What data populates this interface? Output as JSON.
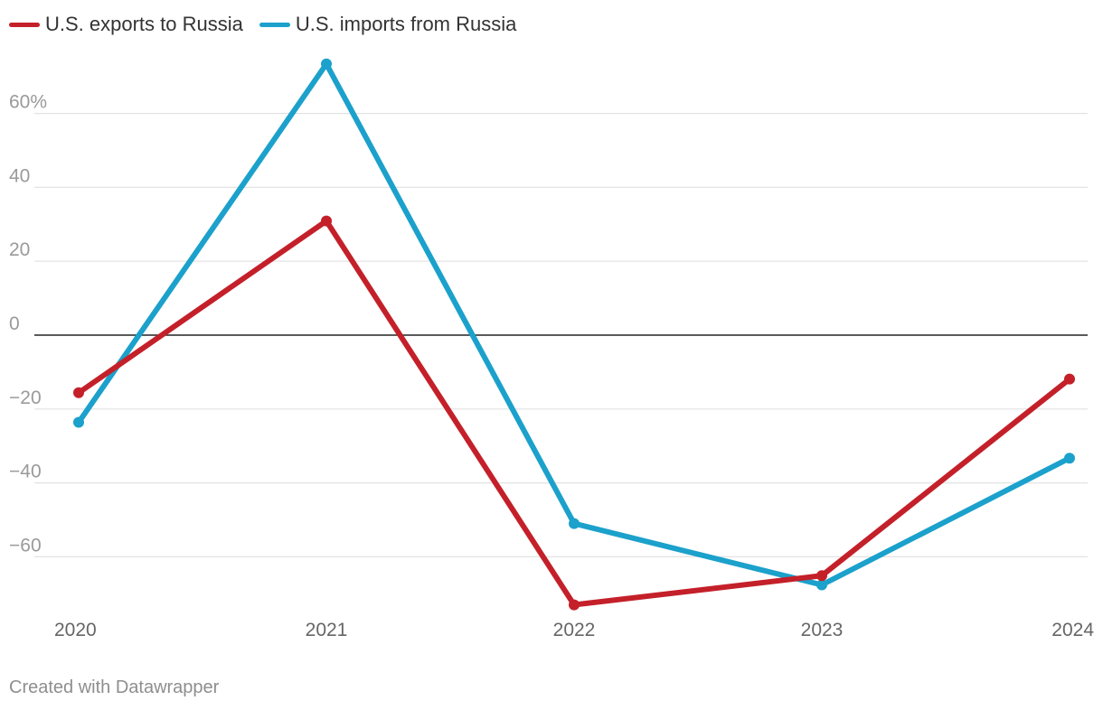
{
  "chart_data": {
    "type": "line",
    "x": [
      "2020",
      "2021",
      "2022",
      "2023",
      "2024"
    ],
    "series": [
      {
        "name": "U.S. exports to Russia",
        "color": "#c4202a",
        "values": [
          -15.6,
          30.9,
          -73.0,
          -65.1,
          -11.9
        ]
      },
      {
        "name": "U.S. imports from Russia",
        "color": "#1ba1cb",
        "values": [
          -23.6,
          73.4,
          -51.0,
          -67.6,
          -33.3
        ]
      }
    ],
    "y_ticks": [
      {
        "value": 60,
        "label": "60%"
      },
      {
        "value": 40,
        "label": "40"
      },
      {
        "value": 20,
        "label": "20"
      },
      {
        "value": 0,
        "label": "0"
      },
      {
        "value": -20,
        "label": "−20"
      },
      {
        "value": -40,
        "label": "−40"
      },
      {
        "value": -60,
        "label": "−60"
      }
    ],
    "ylim": [
      -74,
      74
    ],
    "grid": true,
    "legend_position": "top-left"
  },
  "credit": "Created with Datawrapper"
}
